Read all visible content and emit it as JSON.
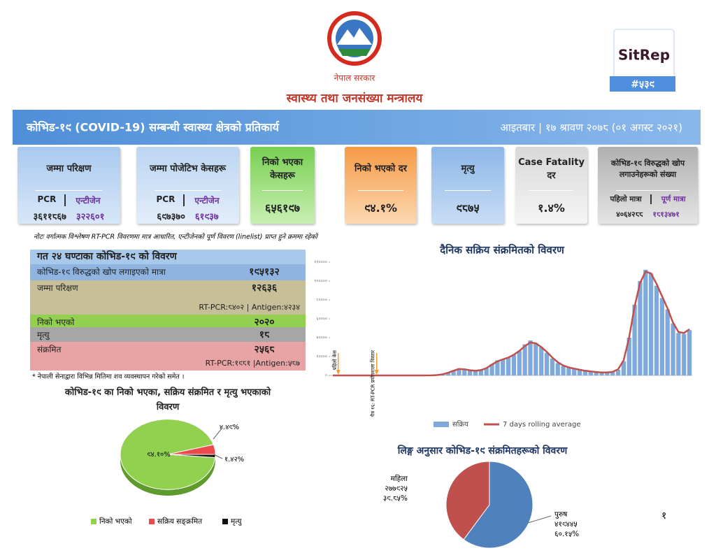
{
  "header": {
    "government": "नेपाल सरकार",
    "ministry": "स्वास्थ्य तथा जनसंख्या मन्त्रालय",
    "badge": "SitRep",
    "report_number": "#५३९"
  },
  "banner": {
    "title": "कोभिड-१९ (COVID-19) सम्बन्धी स्वास्थ्य क्षेत्रको प्रतिकार्य",
    "date": "आइतबार | १७ श्रावण २०७८ (०१ अगस्ट २०२१)"
  },
  "cards": [
    {
      "title": "जम्मा परिक्षण",
      "labels": [
        "PCR",
        "एन्टीजेन"
      ],
      "values": [
        "३६११८६७",
        "३२२६०१"
      ]
    },
    {
      "title": "जम्मा पोजेटिभ केसहरू",
      "labels": [
        "PCR",
        "एन्टीजेन"
      ],
      "values": [
        "६९७३७०",
        "६१९३७"
      ]
    },
    {
      "title": "निको भएका केसहरू",
      "values": [
        "६५६१९७"
      ]
    },
    {
      "title": "निको भएको दर",
      "values": [
        "९४.१%"
      ]
    },
    {
      "title": "मृत्यु",
      "values": [
        "९८७५"
      ]
    },
    {
      "title": "Case Fatality दर",
      "values": [
        "१.४%"
      ]
    },
    {
      "title": "कोभिड-१९ विरुद्धको खोप लगाउनेहरूको संख्या",
      "labels": [
        "पहिलो मात्रा",
        "पूर्ण मात्रा"
      ],
      "values": [
        "४०६४२८८",
        "१८१३४७१"
      ]
    }
  ],
  "note": "नोटः वर्गात्मक विश्लेषण RT-PCR विवरणमा मात्र आधारित, एन्टीजेनको पूर्ण विवरण (linelist) प्राप्त हुने क्रममा रहेको",
  "table": {
    "title": "गत २४ घण्टाका कोभिड-१९ को विवरण",
    "rows": [
      {
        "label": "कोभिड-१९ विरुद्धको खोप लगाइएको मात्रा",
        "value": "१९५१३२"
      },
      {
        "label": "जम्मा परिक्षण",
        "value": "१२६३६",
        "detail": "RT-PCR:८४०२ | Antigen:४२३४"
      },
      {
        "label": "निको भएको",
        "value": "२०२०"
      },
      {
        "label": "मृत्यु",
        "value": "१८"
      },
      {
        "label": "संक्रमित",
        "value": "२५६८",
        "detail": "RT-PCR:१९८१ |Antigen:५८७"
      }
    ],
    "footnote": "* नेपाली सेनाद्वारा विभिन्न मितिमा शव व्यवस्थापन गरेको समेत ।"
  },
  "page_number": "१",
  "chart_data": [
    {
      "type": "bar",
      "title": "दैनिक सक्रिय संक्रमितको विवरण",
      "annotations": [
        "पहिलो केस",
        "चैत्र १६: RT-PCR प्रयोगशाला विस्तार"
      ],
      "categories": [
        null,
        null,
        null,
        null,
        null,
        null,
        null,
        null,
        null,
        null,
        null,
        null,
        null,
        null,
        null,
        null,
        null,
        null,
        null,
        null,
        null,
        null,
        null,
        null,
        null,
        null,
        null,
        null,
        null,
        null,
        null,
        null,
        null,
        null,
        null,
        null,
        null,
        null,
        null,
        null,
        null,
        null,
        null,
        null,
        null,
        null,
        null,
        null,
        null,
        null,
        null,
        null,
        null,
        null,
        null,
        null,
        null,
        null,
        null,
        null,
        null,
        null,
        null,
        null,
        null,
        null
      ],
      "ylim": [
        0,
        120000
      ],
      "yticks": [
        {
          "value": 0,
          "label": "०"
        },
        {
          "value": 20000,
          "label": "२००००"
        },
        {
          "value": 40000,
          "label": "४००००"
        },
        {
          "value": 60000,
          "label": "६००००"
        },
        {
          "value": 80000,
          "label": "८००००"
        },
        {
          "value": 100000,
          "label": "१०००००"
        },
        {
          "value": 120000,
          "label": "१२००००"
        }
      ],
      "series": [
        {
          "name": "सक्रिय",
          "color": "#7ea9da",
          "values": [
            0,
            0,
            0,
            0,
            0,
            0,
            0,
            0,
            0,
            0,
            0,
            0,
            0,
            0,
            0,
            0,
            0,
            0,
            100,
            500,
            1500,
            3000,
            5500,
            7500,
            6500,
            5000,
            4500,
            5500,
            8000,
            12000,
            16000,
            17000,
            19000,
            22000,
            26000,
            33000,
            37000,
            34000,
            30000,
            24000,
            18000,
            13000,
            10000,
            8000,
            7000,
            6000,
            5000,
            4000,
            3500,
            3000,
            3000,
            3500,
            6000,
            15000,
            40000,
            75000,
            100000,
            112000,
            108000,
            95000,
            82000,
            70000,
            55000,
            45000,
            44000,
            48000
          ]
        },
        {
          "name": "7 days rolling average",
          "color": "#c0504d",
          "type": "line",
          "values": [
            0,
            0,
            0,
            0,
            0,
            0,
            0,
            0,
            0,
            0,
            0,
            0,
            0,
            0,
            0,
            0,
            0,
            0,
            50,
            400,
            1200,
            2800,
            5000,
            6800,
            6500,
            5500,
            5000,
            5600,
            7800,
            11500,
            15000,
            17000,
            19000,
            22000,
            26000,
            31000,
            35000,
            34000,
            30000,
            25000,
            19000,
            14000,
            10500,
            8500,
            7200,
            6000,
            5000,
            4200,
            3600,
            3200,
            3100,
            3800,
            6500,
            16000,
            40000,
            73000,
            98000,
            110000,
            108000,
            97000,
            84000,
            71000,
            56000,
            46000,
            45000,
            49000
          ]
        }
      ]
    },
    {
      "type": "pie",
      "title": "कोभिड-१९ का निको भएका, सक्रिय संक्रमित र मृत्यु भएकाको विवरण",
      "categories": [
        "निको भएको",
        "सक्रिय सङ्क्रमित",
        "मृत्यु"
      ],
      "values": [
        94.1,
        4.49,
        1.42
      ],
      "value_labels": [
        "९४.१०%",
        "४.४९%",
        "१.४२%"
      ],
      "colors": [
        "#92d050",
        "#ec4a4a",
        "#111111"
      ]
    },
    {
      "type": "pie",
      "title": "लिङ्ग अनुसार कोभिड-१९ संक्रमितहरूको विवरण",
      "categories": [
        "पुरुष",
        "महिला"
      ],
      "count_labels": [
        "४१९४४५",
        "२७७९२५"
      ],
      "values": [
        60.15,
        39.85
      ],
      "value_labels": [
        "६०.१५%",
        "३९.८५%"
      ],
      "colors": [
        "#4f81bd",
        "#c0504d"
      ]
    }
  ]
}
